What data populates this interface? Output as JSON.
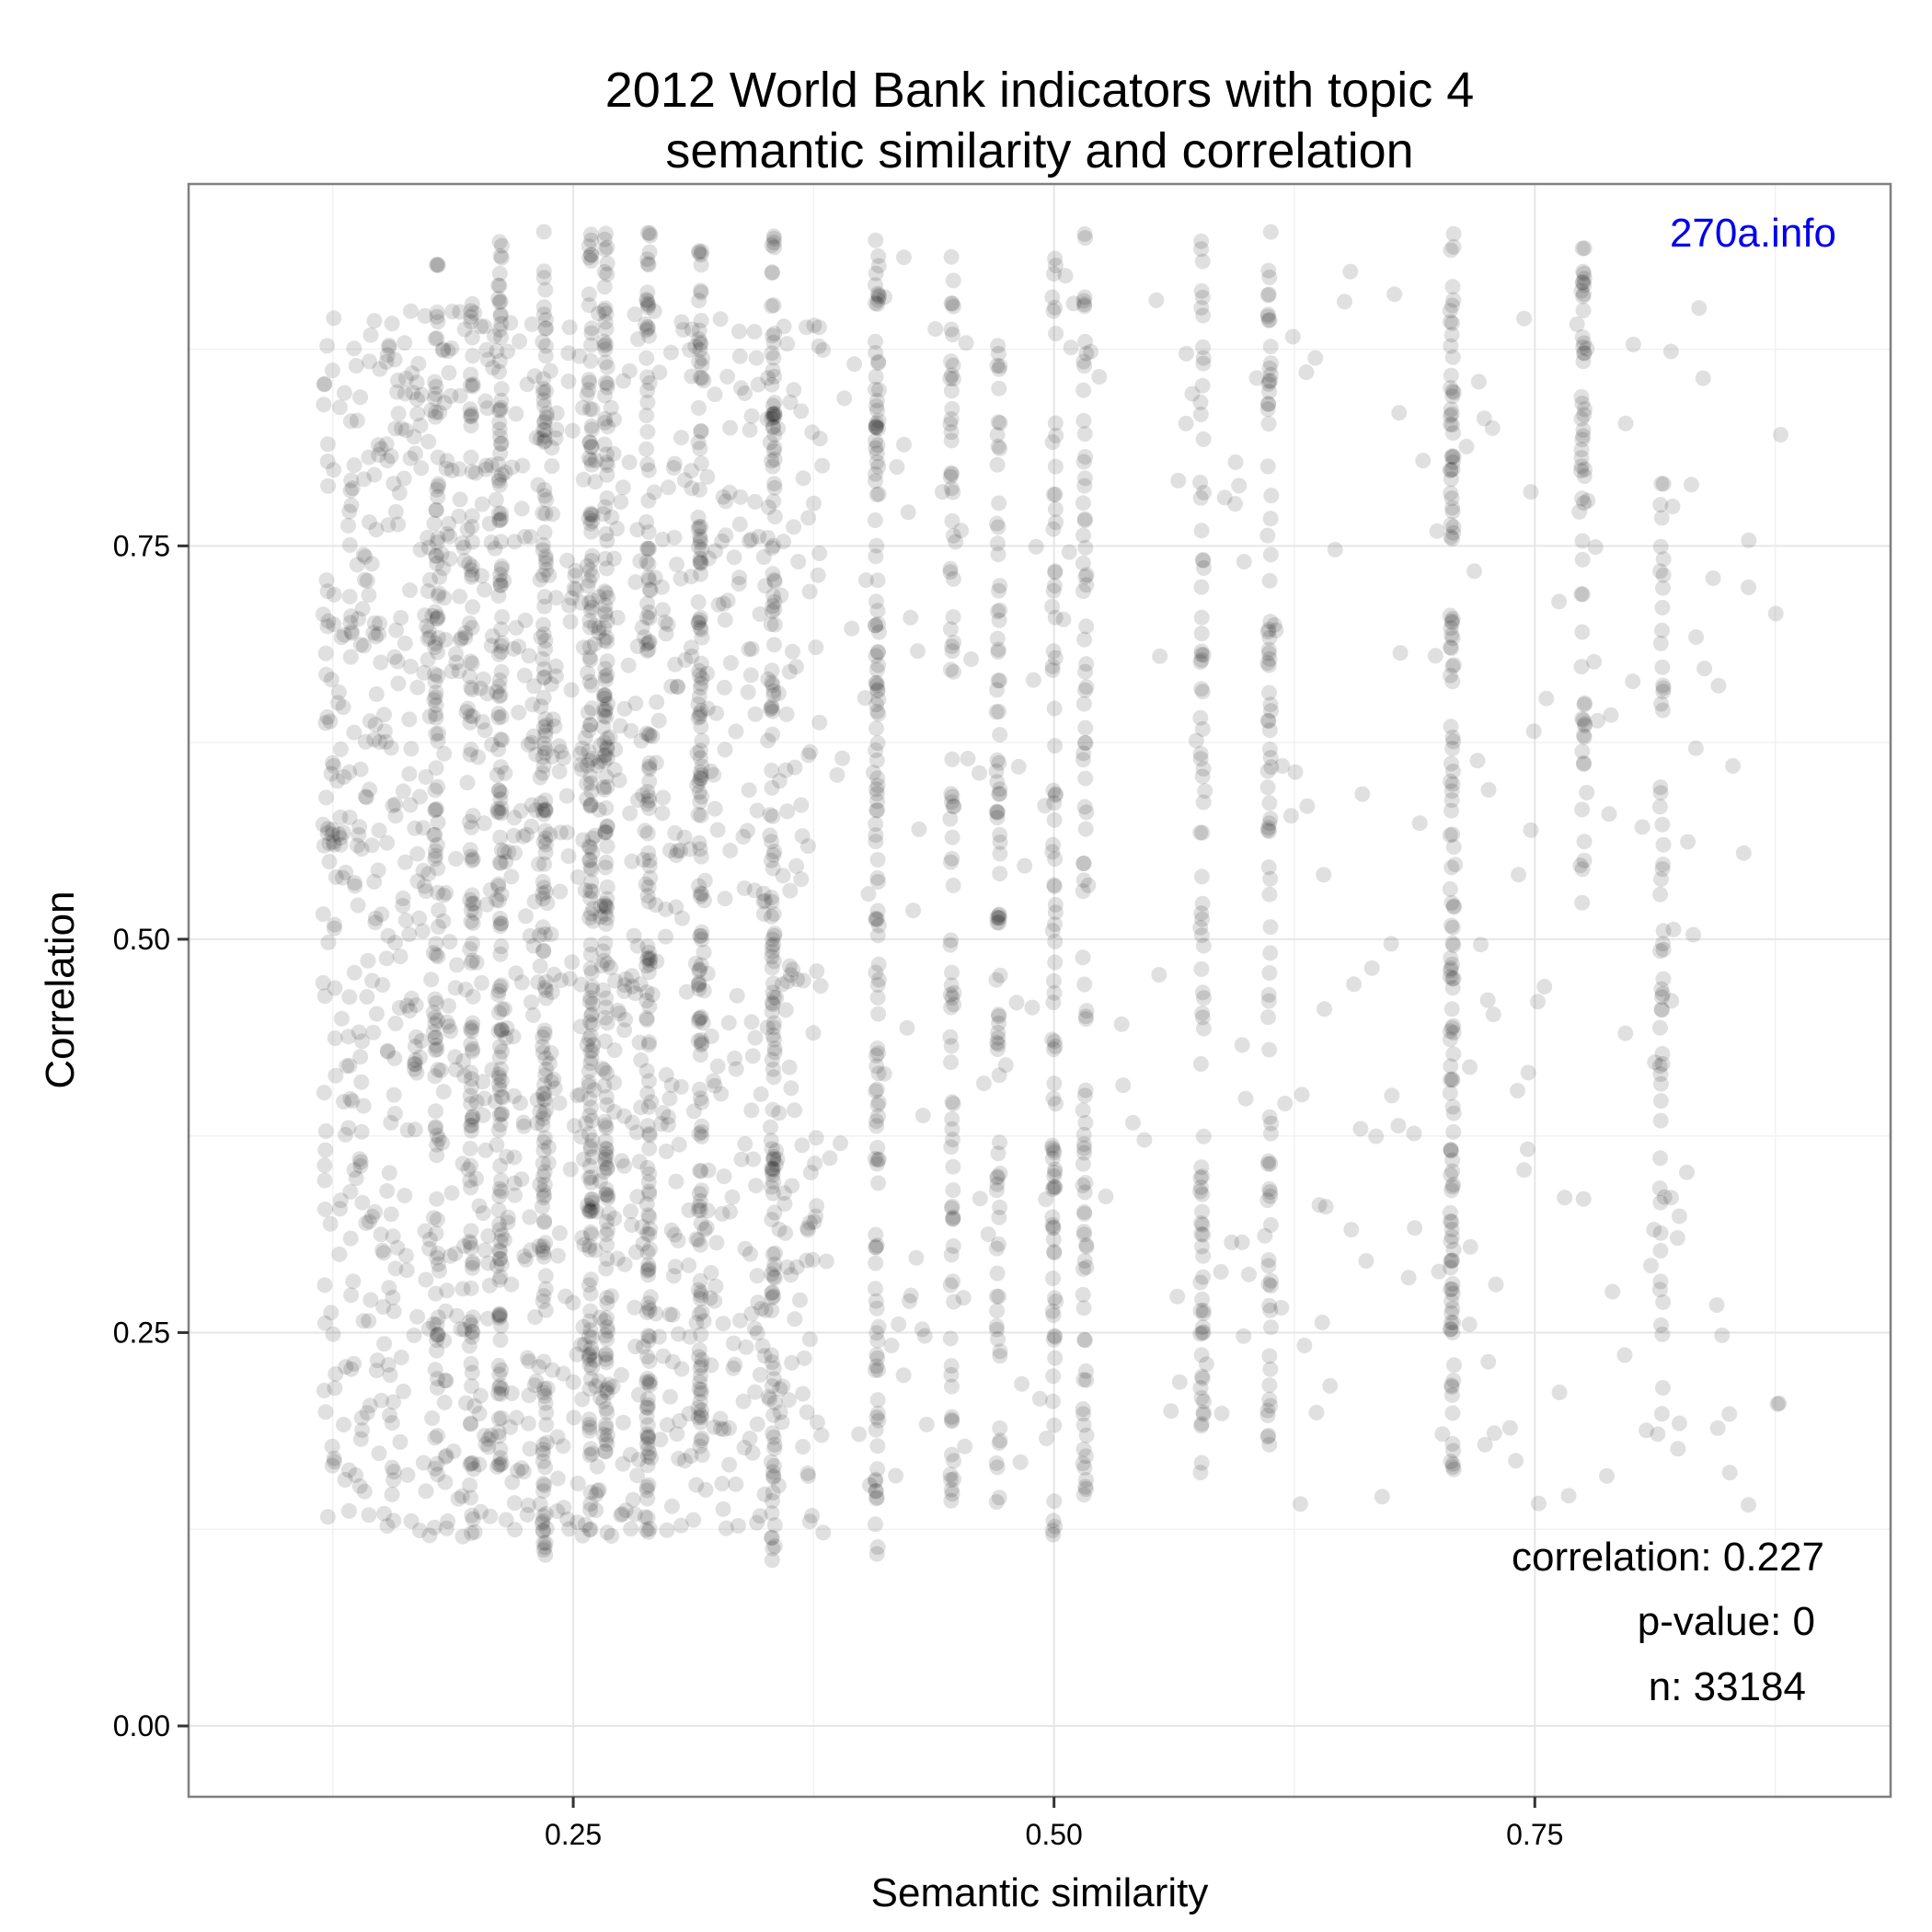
{
  "chart_data": {
    "type": "scatter",
    "title_line1": "2012 World Bank indicators with topic 4",
    "title_line2": "semantic similarity and correlation",
    "xlabel": "Semantic similarity",
    "ylabel": "Correlation",
    "xlim": [
      0.05,
      0.935
    ],
    "ylim": [
      -0.045,
      0.98
    ],
    "x_ticks": [
      {
        "value": 0.25,
        "label": "0.25"
      },
      {
        "value": 0.5,
        "label": "0.50"
      },
      {
        "value": 0.75,
        "label": "0.75"
      }
    ],
    "y_ticks": [
      {
        "value": 0.0,
        "label": "0.00"
      },
      {
        "value": 0.25,
        "label": "0.25"
      },
      {
        "value": 0.5,
        "label": "0.50"
      },
      {
        "value": 0.75,
        "label": "0.75"
      }
    ],
    "grid": true,
    "point_color": "#000000",
    "point_opacity": 0.12,
    "bands": [
      {
        "x": 0.179,
        "y_min": 0.15,
        "y_max": 0.93,
        "density": "high"
      },
      {
        "x": 0.197,
        "y_min": 0.13,
        "y_max": 0.93,
        "density": "high"
      },
      {
        "x": 0.212,
        "y_min": 0.16,
        "y_max": 0.95,
        "density": "very-high"
      },
      {
        "x": 0.235,
        "y_min": 0.1,
        "y_max": 0.95,
        "density": "very-high"
      },
      {
        "x": 0.259,
        "y_min": 0.12,
        "y_max": 0.95,
        "density": "very-high"
      },
      {
        "x": 0.267,
        "y_min": 0.14,
        "y_max": 0.95,
        "density": "very-high"
      },
      {
        "x": 0.289,
        "y_min": 0.12,
        "y_max": 0.95,
        "density": "very-high"
      },
      {
        "x": 0.316,
        "y_min": 0.16,
        "y_max": 0.95,
        "density": "very-high"
      },
      {
        "x": 0.354,
        "y_min": 0.1,
        "y_max": 0.95,
        "density": "very-high"
      },
      {
        "x": 0.408,
        "y_min": 0.1,
        "y_max": 0.95,
        "density": "very-high"
      },
      {
        "x": 0.447,
        "y_min": 0.14,
        "y_max": 0.95,
        "density": "high"
      },
      {
        "x": 0.471,
        "y_min": 0.14,
        "y_max": 0.88,
        "density": "high"
      },
      {
        "x": 0.5,
        "y_min": 0.12,
        "y_max": 0.94,
        "density": "high"
      },
      {
        "x": 0.516,
        "y_min": 0.14,
        "y_max": 0.95,
        "density": "high"
      },
      {
        "x": 0.577,
        "y_min": 0.14,
        "y_max": 0.95,
        "density": "high"
      },
      {
        "x": 0.612,
        "y_min": 0.17,
        "y_max": 0.95,
        "density": "high"
      },
      {
        "x": 0.707,
        "y_min": 0.16,
        "y_max": 0.95,
        "density": "very-high"
      },
      {
        "x": 0.775,
        "y_min": 0.52,
        "y_max": 0.94,
        "density": "medium"
      },
      {
        "x": 0.816,
        "y_min": 0.18,
        "y_max": 0.85,
        "density": "medium"
      }
    ],
    "point_count": 33184,
    "annotations": {
      "correlation": "correlation: 0.227",
      "p_value": "p-value: 0",
      "n": "n: 33184"
    },
    "watermark": "270a.info"
  }
}
